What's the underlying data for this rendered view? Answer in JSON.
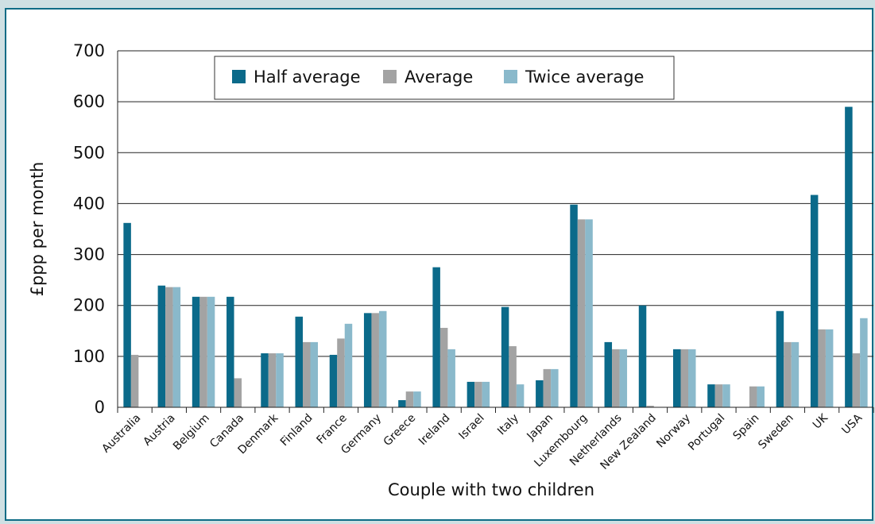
{
  "chart_data": {
    "type": "bar",
    "title": "",
    "xlabel": "Couple with two children",
    "ylabel": "£ppp per month",
    "ylim": [
      0,
      700
    ],
    "yticks": [
      0,
      100,
      200,
      300,
      400,
      500,
      600,
      700
    ],
    "grid": true,
    "legend_position": "top",
    "categories": [
      "Australia",
      "Austria",
      "Belgium",
      "Canada",
      "Denmark",
      "Finland",
      "France",
      "Germany",
      "Greece",
      "Ireland",
      "Israel",
      "Italy",
      "Japan",
      "Luxembourg",
      "Netherlands",
      "New Zealand",
      "Norway",
      "Portugal",
      "Spain",
      "Sweden",
      "UK",
      "USA"
    ],
    "series": [
      {
        "name": "Half average",
        "color": "#0b6a8a",
        "values": [
          362,
          239,
          217,
          217,
          106,
          178,
          103,
          185,
          14,
          275,
          50,
          197,
          53,
          398,
          128,
          200,
          114,
          45,
          0,
          189,
          417,
          590
        ]
      },
      {
        "name": "Average",
        "color": "#a3a3a3",
        "values": [
          103,
          236,
          217,
          57,
          106,
          128,
          135,
          185,
          31,
          156,
          50,
          120,
          75,
          369,
          114,
          3,
          114,
          45,
          41,
          128,
          153,
          106
        ]
      },
      {
        "name": "Twice average",
        "color": "#8ab9cb",
        "values": [
          0,
          236,
          217,
          0,
          106,
          128,
          164,
          189,
          31,
          114,
          50,
          45,
          75,
          369,
          114,
          0,
          114,
          45,
          41,
          128,
          153,
          175
        ]
      }
    ]
  }
}
